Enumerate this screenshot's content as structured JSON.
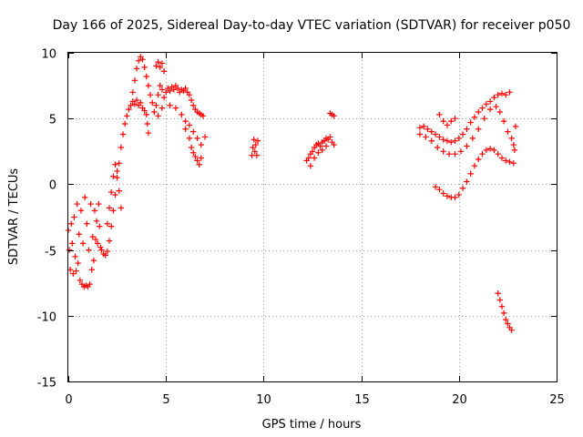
{
  "chart_data": {
    "type": "scatter",
    "title": "Day 166 of 2025, Sidereal Day-to-day VTEC variation (SDTVAR) for receiver p050",
    "xlabel": "GPS time / hours",
    "ylabel": "SDTVAR / TECUs",
    "xlim": [
      0,
      25
    ],
    "ylim": [
      -15,
      10
    ],
    "xticks": [
      0,
      5,
      10,
      15,
      20,
      25
    ],
    "yticks": [
      -15,
      -10,
      -5,
      0,
      5,
      10
    ],
    "grid": true,
    "marker": "plus",
    "color": "#ff0000",
    "series": [
      {
        "points": [
          [
            0.0,
            -3.5
          ],
          [
            0.05,
            -5.0
          ],
          [
            0.1,
            -6.5
          ],
          [
            0.15,
            -3.0
          ],
          [
            0.2,
            -4.5
          ],
          [
            0.25,
            -6.8
          ],
          [
            0.3,
            -2.5
          ],
          [
            0.35,
            -5.5
          ],
          [
            0.4,
            -6.6
          ],
          [
            0.45,
            -1.5
          ],
          [
            0.5,
            -6.0
          ],
          [
            0.55,
            -3.8
          ],
          [
            0.6,
            -7.3
          ],
          [
            0.65,
            -2.0
          ],
          [
            0.7,
            -7.6
          ],
          [
            0.75,
            -4.5
          ],
          [
            0.8,
            -7.8
          ],
          [
            0.85,
            -1.0
          ],
          [
            0.9,
            -7.7
          ],
          [
            0.95,
            -3.0
          ],
          [
            1.0,
            -7.8
          ],
          [
            1.05,
            -5.0
          ],
          [
            1.1,
            -7.6
          ],
          [
            1.15,
            -1.5
          ],
          [
            1.2,
            -6.5
          ],
          [
            1.25,
            -4.0
          ],
          [
            1.3,
            -5.8
          ],
          [
            1.35,
            -2.0
          ],
          [
            1.4,
            -4.2
          ],
          [
            1.45,
            -2.8
          ],
          [
            1.5,
            -4.5
          ],
          [
            1.55,
            -1.5
          ],
          [
            1.6,
            -3.2
          ],
          [
            1.65,
            -4.8
          ],
          [
            1.7,
            -5.0
          ],
          [
            1.8,
            -5.3
          ],
          [
            1.9,
            -5.4
          ],
          [
            2.0,
            -5.1
          ],
          [
            2.1,
            -4.3
          ],
          [
            2.2,
            -3.2
          ],
          [
            2.3,
            -2.0
          ],
          [
            2.4,
            -0.8
          ],
          [
            2.5,
            0.5
          ],
          [
            2.6,
            1.6
          ],
          [
            2.7,
            2.8
          ],
          [
            2.8,
            3.8
          ],
          [
            2.9,
            4.6
          ],
          [
            3.0,
            5.2
          ],
          [
            3.1,
            5.7
          ],
          [
            3.2,
            6.0
          ],
          [
            3.3,
            6.3
          ],
          [
            3.4,
            6.1
          ],
          [
            3.5,
            6.4
          ],
          [
            3.6,
            6.0
          ],
          [
            3.7,
            6.2
          ],
          [
            3.8,
            5.8
          ],
          [
            3.9,
            5.6
          ],
          [
            4.0,
            5.3
          ],
          [
            4.05,
            4.6
          ],
          [
            4.1,
            3.9
          ],
          [
            3.3,
            7.0
          ],
          [
            3.4,
            7.9
          ],
          [
            3.5,
            8.8
          ],
          [
            3.6,
            9.4
          ],
          [
            3.7,
            9.7
          ],
          [
            3.8,
            9.5
          ],
          [
            3.9,
            8.9
          ],
          [
            4.0,
            8.2
          ],
          [
            4.1,
            7.5
          ],
          [
            4.2,
            6.8
          ],
          [
            4.3,
            6.2
          ],
          [
            2.0,
            -3.0
          ],
          [
            2.1,
            -1.8
          ],
          [
            2.2,
            -0.6
          ],
          [
            2.3,
            0.6
          ],
          [
            2.4,
            1.5
          ],
          [
            2.5,
            1.0
          ],
          [
            2.6,
            -0.5
          ],
          [
            2.7,
            -1.8
          ],
          [
            4.5,
            6.0
          ],
          [
            4.6,
            6.8
          ],
          [
            4.7,
            7.5
          ],
          [
            4.8,
            7.2
          ],
          [
            4.9,
            6.6
          ],
          [
            5.0,
            7.0
          ],
          [
            5.1,
            7.3
          ],
          [
            5.2,
            7.1
          ],
          [
            5.3,
            7.4
          ],
          [
            5.4,
            7.2
          ],
          [
            5.5,
            7.5
          ],
          [
            5.6,
            7.3
          ],
          [
            5.7,
            7.0
          ],
          [
            5.8,
            7.2
          ],
          [
            5.9,
            7.1
          ],
          [
            6.0,
            7.3
          ],
          [
            6.1,
            7.0
          ],
          [
            6.2,
            6.8
          ],
          [
            6.3,
            6.4
          ],
          [
            6.4,
            6.0
          ],
          [
            6.5,
            5.7
          ],
          [
            6.6,
            5.5
          ],
          [
            6.7,
            5.4
          ],
          [
            6.8,
            5.3
          ],
          [
            6.9,
            5.2
          ],
          [
            4.4,
            5.5
          ],
          [
            4.6,
            5.2
          ],
          [
            4.8,
            5.8
          ],
          [
            5.2,
            6.0
          ],
          [
            5.5,
            5.8
          ],
          [
            5.8,
            5.3
          ],
          [
            6.0,
            4.8
          ],
          [
            6.2,
            4.5
          ],
          [
            6.4,
            4.0
          ],
          [
            6.6,
            3.5
          ],
          [
            6.8,
            3.0
          ],
          [
            7.0,
            3.6
          ],
          [
            6.0,
            4.2
          ],
          [
            6.2,
            3.5
          ],
          [
            6.3,
            2.8
          ],
          [
            6.4,
            2.4
          ],
          [
            6.5,
            2.1
          ],
          [
            6.6,
            1.8
          ],
          [
            6.7,
            1.5
          ],
          [
            6.8,
            2.0
          ],
          [
            4.5,
            9.0
          ],
          [
            4.6,
            9.3
          ],
          [
            4.7,
            8.9
          ],
          [
            4.8,
            9.2
          ],
          [
            4.9,
            8.6
          ],
          [
            9.4,
            2.2
          ],
          [
            9.45,
            2.8
          ],
          [
            9.5,
            3.4
          ],
          [
            9.55,
            2.5
          ],
          [
            9.6,
            3.0
          ],
          [
            9.65,
            2.2
          ],
          [
            9.7,
            3.3
          ],
          [
            12.2,
            1.8
          ],
          [
            12.3,
            2.0
          ],
          [
            12.4,
            2.3
          ],
          [
            12.5,
            2.5
          ],
          [
            12.6,
            2.8
          ],
          [
            12.7,
            3.0
          ],
          [
            12.8,
            3.1
          ],
          [
            12.9,
            2.9
          ],
          [
            13.0,
            3.2
          ],
          [
            13.1,
            3.3
          ],
          [
            13.2,
            3.5
          ],
          [
            13.3,
            3.4
          ],
          [
            13.4,
            3.6
          ],
          [
            13.5,
            3.2
          ],
          [
            13.6,
            3.0
          ],
          [
            12.4,
            1.4
          ],
          [
            12.6,
            2.0
          ],
          [
            12.8,
            2.4
          ],
          [
            13.0,
            2.6
          ],
          [
            13.2,
            2.9
          ],
          [
            13.4,
            5.4
          ],
          [
            13.5,
            5.3
          ],
          [
            13.6,
            5.2
          ],
          [
            18.0,
            4.3
          ],
          [
            18.2,
            4.4
          ],
          [
            18.4,
            4.2
          ],
          [
            18.6,
            4.0
          ],
          [
            18.8,
            3.8
          ],
          [
            19.0,
            3.6
          ],
          [
            19.2,
            3.4
          ],
          [
            19.4,
            3.3
          ],
          [
            19.6,
            3.2
          ],
          [
            19.8,
            3.3
          ],
          [
            20.0,
            3.5
          ],
          [
            20.2,
            3.8
          ],
          [
            20.4,
            4.2
          ],
          [
            20.6,
            4.7
          ],
          [
            20.8,
            5.1
          ],
          [
            21.0,
            5.5
          ],
          [
            21.2,
            5.8
          ],
          [
            21.4,
            6.1
          ],
          [
            21.6,
            6.3
          ],
          [
            21.8,
            6.6
          ],
          [
            22.0,
            6.8
          ],
          [
            22.2,
            6.9
          ],
          [
            22.4,
            6.8
          ],
          [
            22.6,
            7.0
          ],
          [
            18.0,
            3.8
          ],
          [
            18.3,
            3.6
          ],
          [
            18.6,
            3.3
          ],
          [
            18.9,
            2.8
          ],
          [
            19.2,
            2.5
          ],
          [
            19.5,
            2.3
          ],
          [
            19.8,
            2.3
          ],
          [
            20.1,
            2.5
          ],
          [
            20.4,
            2.9
          ],
          [
            20.7,
            3.5
          ],
          [
            21.0,
            4.2
          ],
          [
            21.3,
            5.0
          ],
          [
            21.6,
            5.7
          ],
          [
            21.9,
            5.9
          ],
          [
            22.1,
            5.5
          ],
          [
            22.3,
            4.8
          ],
          [
            22.5,
            4.0
          ],
          [
            22.7,
            3.5
          ],
          [
            19.0,
            5.3
          ],
          [
            19.2,
            4.8
          ],
          [
            19.4,
            4.5
          ],
          [
            19.6,
            4.8
          ],
          [
            19.8,
            5.0
          ],
          [
            18.8,
            -0.2
          ],
          [
            19.0,
            -0.4
          ],
          [
            19.2,
            -0.7
          ],
          [
            19.4,
            -0.9
          ],
          [
            19.6,
            -1.0
          ],
          [
            19.8,
            -1.0
          ],
          [
            20.0,
            -0.8
          ],
          [
            20.2,
            -0.3
          ],
          [
            20.4,
            0.2
          ],
          [
            20.6,
            0.8
          ],
          [
            20.8,
            1.4
          ],
          [
            21.0,
            1.9
          ],
          [
            21.2,
            2.3
          ],
          [
            21.4,
            2.6
          ],
          [
            21.6,
            2.7
          ],
          [
            21.8,
            2.6
          ],
          [
            22.0,
            2.3
          ],
          [
            22.2,
            2.0
          ],
          [
            22.4,
            1.8
          ],
          [
            22.6,
            1.7
          ],
          [
            22.8,
            1.6
          ],
          [
            22.0,
            -8.3
          ],
          [
            22.1,
            -8.8
          ],
          [
            22.2,
            -9.3
          ],
          [
            22.3,
            -9.8
          ],
          [
            22.4,
            -10.3
          ],
          [
            22.5,
            -10.6
          ],
          [
            22.6,
            -10.9
          ],
          [
            22.7,
            -11.1
          ],
          [
            22.9,
            4.4
          ],
          [
            22.8,
            3.0
          ],
          [
            22.85,
            2.6
          ]
        ]
      }
    ]
  }
}
